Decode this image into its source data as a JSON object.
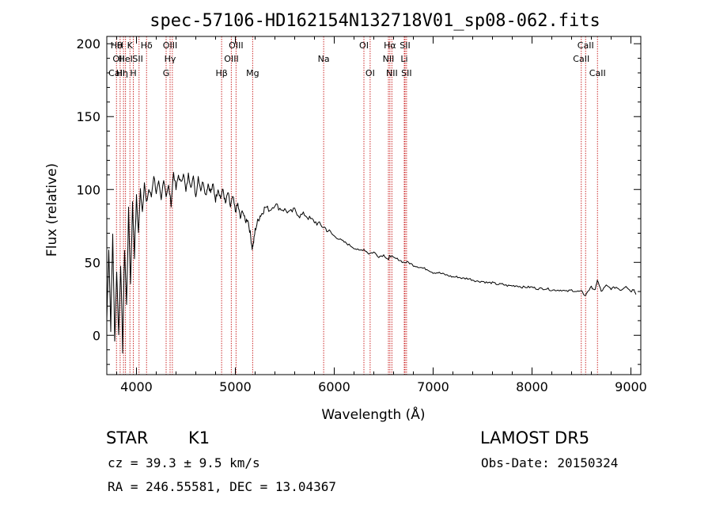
{
  "chart_data": {
    "type": "line",
    "title": "spec-57106-HD162154N132718V01_sp08-062.fits",
    "xlabel": "Wavelength (Å)",
    "ylabel": "Flux (relative)",
    "xlim": [
      3700,
      9100
    ],
    "ylim": [
      -27,
      205
    ],
    "x_ticks": [
      4000,
      5000,
      6000,
      7000,
      8000,
      9000
    ],
    "y_ticks": [
      0,
      50,
      100,
      150,
      200
    ],
    "grid": false,
    "series": [
      {
        "x": [
          3700,
          3720,
          3740,
          3760,
          3780,
          3800,
          3820,
          3840,
          3860,
          3880,
          3900,
          3920,
          3940,
          3960,
          3980,
          4000,
          4020,
          4040,
          4060,
          4080,
          4100,
          4125,
          4150,
          4175,
          4200,
          4225,
          4250,
          4275,
          4300,
          4325,
          4350,
          4375,
          4400,
          4425,
          4450,
          4475,
          4500,
          4525,
          4550,
          4575,
          4600,
          4625,
          4650,
          4675,
          4700,
          4725,
          4750,
          4775,
          4800,
          4825,
          4850,
          4875,
          4900,
          4925,
          4950,
          4975,
          5000,
          5025,
          5050,
          5075,
          5100,
          5125,
          5150,
          5170,
          5185,
          5200,
          5225,
          5250,
          5275,
          5300,
          5350,
          5400,
          5450,
          5500,
          5550,
          5600,
          5650,
          5700,
          5750,
          5800,
          5850,
          5900,
          5950,
          6000,
          6050,
          6100,
          6150,
          6200,
          6250,
          6300,
          6350,
          6400,
          6450,
          6500,
          6550,
          6563,
          6600,
          6650,
          6700,
          6750,
          6800,
          6850,
          6900,
          6950,
          7000,
          7050,
          7100,
          7150,
          7200,
          7250,
          7300,
          7350,
          7400,
          7450,
          7500,
          7550,
          7600,
          7650,
          7700,
          7750,
          7800,
          7850,
          7900,
          7950,
          8000,
          8050,
          8100,
          8150,
          8200,
          8250,
          8300,
          8350,
          8400,
          8450,
          8500,
          8540,
          8560,
          8600,
          8640,
          8660,
          8700,
          8750,
          8800,
          8850,
          8900,
          8950,
          9000,
          9030,
          9050
        ],
        "y": [
          10,
          60,
          5,
          70,
          -5,
          45,
          0,
          50,
          -10,
          60,
          20,
          85,
          35,
          90,
          55,
          95,
          70,
          100,
          85,
          105,
          90,
          100,
          95,
          110,
          98,
          104,
          92,
          108,
          96,
          102,
          90,
          112,
          100,
          110,
          104,
          112,
          98,
          110,
          103,
          108,
          95,
          109,
          100,
          106,
          96,
          104,
          98,
          103,
          93,
          101,
          94,
          100,
          90,
          98,
          88,
          95,
          85,
          90,
          80,
          86,
          78,
          80,
          70,
          60,
          64,
          72,
          78,
          82,
          84,
          88,
          86,
          90,
          87,
          86,
          84,
          86,
          82,
          83,
          80,
          78,
          76,
          74,
          71,
          68,
          66,
          64,
          62,
          60,
          58,
          59,
          56,
          57,
          54,
          55,
          52,
          55,
          53,
          52,
          50,
          50,
          48,
          47,
          46,
          45,
          43,
          43,
          42,
          41,
          40,
          40,
          39,
          39,
          38,
          37,
          37,
          36,
          36,
          35,
          35,
          34,
          34,
          34,
          33,
          33,
          33,
          32,
          32,
          32,
          31,
          31,
          31,
          30,
          31,
          30,
          30,
          27,
          30,
          33,
          31,
          38,
          30,
          34,
          32,
          33,
          31,
          34,
          30,
          32,
          28
        ]
      }
    ],
    "line_labels": [
      {
        "wl": 3798,
        "row": 1,
        "text": "Hθ"
      },
      {
        "wl": 3820,
        "row": 2,
        "text": "OII"
      },
      {
        "wl": 3800,
        "row": 3,
        "text": "CaII"
      },
      {
        "wl": 3835,
        "row": 1,
        "text": "H"
      },
      {
        "wl": 3855,
        "row": 3,
        "text": "Hη"
      },
      {
        "wl": 3890,
        "row": 2,
        "text": "HeI"
      },
      {
        "wl": 3934,
        "row": 1,
        "text": "K"
      },
      {
        "wl": 3968,
        "row": 3,
        "text": "H"
      },
      {
        "wl": 4013,
        "row": 2,
        "text": "SII"
      },
      {
        "wl": 4102,
        "row": 1,
        "text": "Hδ"
      },
      {
        "wl": 4340,
        "row": 1,
        "text": "OIII"
      },
      {
        "wl": 4340,
        "row": 2,
        "text": "Hγ"
      },
      {
        "wl": 4300,
        "row": 3,
        "text": "G"
      },
      {
        "wl": 4861,
        "row": 3,
        "text": "Hβ"
      },
      {
        "wl": 5007,
        "row": 1,
        "text": "OIII"
      },
      {
        "wl": 4960,
        "row": 2,
        "text": "OIII"
      },
      {
        "wl": 5175,
        "row": 3,
        "text": "Mg"
      },
      {
        "wl": 5893,
        "row": 2,
        "text": "Na"
      },
      {
        "wl": 6300,
        "row": 1,
        "text": "OI"
      },
      {
        "wl": 6363,
        "row": 3,
        "text": "OI"
      },
      {
        "wl": 6563,
        "row": 1,
        "text": "Hα"
      },
      {
        "wl": 6548,
        "row": 2,
        "text": "NII"
      },
      {
        "wl": 6583,
        "row": 3,
        "text": "NII"
      },
      {
        "wl": 6716,
        "row": 1,
        "text": "SII"
      },
      {
        "wl": 6708,
        "row": 2,
        "text": "Li"
      },
      {
        "wl": 6731,
        "row": 3,
        "text": "SII"
      },
      {
        "wl": 8542,
        "row": 1,
        "text": "CaII"
      },
      {
        "wl": 8498,
        "row": 2,
        "text": "CaII"
      },
      {
        "wl": 8662,
        "row": 3,
        "text": "CaII"
      }
    ],
    "marker_lines": [
      3798,
      3835,
      3869,
      3889,
      3934,
      3968,
      4026,
      4102,
      4300,
      4340,
      4363,
      4861,
      4959,
      5007,
      5175,
      5893,
      6300,
      6363,
      6548,
      6563,
      6583,
      6708,
      6716,
      6731,
      8498,
      8542,
      8662
    ]
  },
  "info": {
    "object_class": "STAR",
    "subclass": "K1",
    "survey": "LAMOST  DR5",
    "cz": "cz = 39.3 ± 9.5 km/s",
    "obs_date": "Obs-Date: 20150324",
    "coords": "RA = 246.55581, DEC =  13.04367"
  },
  "colors": {
    "axis": "#000000",
    "spectrum": "#000000",
    "marker": "#cc2a2a",
    "background": "#ffffff"
  }
}
